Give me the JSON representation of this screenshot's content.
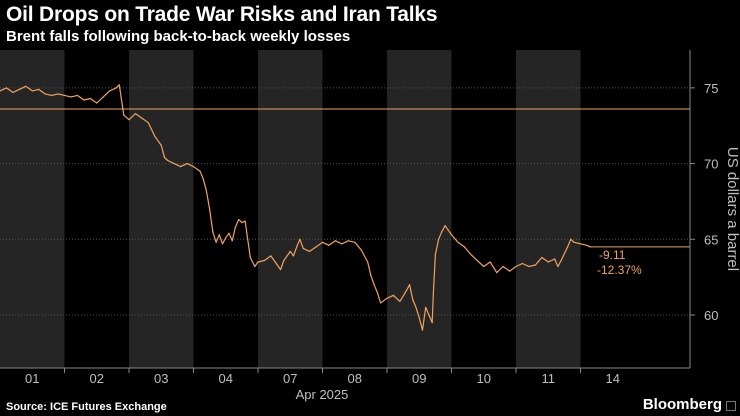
{
  "header": {
    "title": "Oil Drops on Trade War Risks and Iran Talks",
    "subtitle": "Brent falls following back-to-back weekly losses"
  },
  "footer": {
    "source": "Source: ICE Futures Exchange",
    "brand": "Bloomberg"
  },
  "colors": {
    "background": "#000000",
    "line": "#f0a35e",
    "reference_line": "#f0a35e",
    "shade": "#252525",
    "grid": "#555555",
    "text": "#ffffff",
    "axis_text": "#bfbfbf"
  },
  "chart_data": {
    "type": "line",
    "title": "Oil Drops on Trade War Risks and Iran Talks",
    "subtitle": "Brent falls following back-to-back weekly losses",
    "xlabel": "Apr 2025",
    "ylabel": "US dollars a barrel",
    "x_tick_labels": [
      "01",
      "02",
      "03",
      "04",
      "07",
      "08",
      "09",
      "10",
      "11",
      "14"
    ],
    "ylim": [
      56.5,
      77.5
    ],
    "y_ticks": [
      60,
      65,
      70,
      75
    ],
    "grid": "horizontal dotted",
    "shaded_days": [
      "01",
      "03",
      "07",
      "09",
      "11"
    ],
    "reference_value": 73.6,
    "last_value": 64.5,
    "change_label": "-9.11",
    "change_pct_label": "-12.37%",
    "series": [
      {
        "points": [
          {
            "x": 0.0,
            "y": 74.8
          },
          {
            "x": 0.1,
            "y": 75.0
          },
          {
            "x": 0.2,
            "y": 74.7
          },
          {
            "x": 0.3,
            "y": 74.9
          },
          {
            "x": 0.4,
            "y": 75.1
          },
          {
            "x": 0.5,
            "y": 74.8
          },
          {
            "x": 0.6,
            "y": 74.9
          },
          {
            "x": 0.7,
            "y": 74.6
          },
          {
            "x": 0.8,
            "y": 74.5
          },
          {
            "x": 0.9,
            "y": 74.6
          },
          {
            "x": 1.0,
            "y": 74.5
          },
          {
            "x": 1.1,
            "y": 74.4
          },
          {
            "x": 1.2,
            "y": 74.5
          },
          {
            "x": 1.3,
            "y": 74.2
          },
          {
            "x": 1.4,
            "y": 74.3
          },
          {
            "x": 1.5,
            "y": 74.0
          },
          {
            "x": 1.6,
            "y": 74.4
          },
          {
            "x": 1.7,
            "y": 74.8
          },
          {
            "x": 1.8,
            "y": 75.0
          },
          {
            "x": 1.85,
            "y": 75.2
          },
          {
            "x": 1.88,
            "y": 74.3
          },
          {
            "x": 1.92,
            "y": 73.2
          },
          {
            "x": 2.0,
            "y": 72.9
          },
          {
            "x": 2.1,
            "y": 73.3
          },
          {
            "x": 2.2,
            "y": 73.0
          },
          {
            "x": 2.3,
            "y": 72.7
          },
          {
            "x": 2.4,
            "y": 71.8
          },
          {
            "x": 2.5,
            "y": 71.2
          },
          {
            "x": 2.55,
            "y": 70.4
          },
          {
            "x": 2.6,
            "y": 70.2
          },
          {
            "x": 2.7,
            "y": 70.0
          },
          {
            "x": 2.8,
            "y": 69.8
          },
          {
            "x": 2.9,
            "y": 70.0
          },
          {
            "x": 3.0,
            "y": 69.8
          },
          {
            "x": 3.1,
            "y": 69.5
          },
          {
            "x": 3.15,
            "y": 69.0
          },
          {
            "x": 3.2,
            "y": 68.2
          },
          {
            "x": 3.25,
            "y": 67.0
          },
          {
            "x": 3.3,
            "y": 65.5
          },
          {
            "x": 3.35,
            "y": 64.8
          },
          {
            "x": 3.4,
            "y": 65.3
          },
          {
            "x": 3.45,
            "y": 64.7
          },
          {
            "x": 3.5,
            "y": 65.1
          },
          {
            "x": 3.55,
            "y": 65.4
          },
          {
            "x": 3.6,
            "y": 64.9
          },
          {
            "x": 3.65,
            "y": 65.8
          },
          {
            "x": 3.7,
            "y": 66.3
          },
          {
            "x": 3.75,
            "y": 66.1
          },
          {
            "x": 3.8,
            "y": 66.2
          },
          {
            "x": 3.88,
            "y": 63.8
          },
          {
            "x": 3.95,
            "y": 63.2
          },
          {
            "x": 4.0,
            "y": 63.5
          },
          {
            "x": 4.1,
            "y": 63.6
          },
          {
            "x": 4.2,
            "y": 63.9
          },
          {
            "x": 4.3,
            "y": 63.3
          },
          {
            "x": 4.35,
            "y": 63.0
          },
          {
            "x": 4.4,
            "y": 63.6
          },
          {
            "x": 4.5,
            "y": 64.2
          },
          {
            "x": 4.55,
            "y": 63.9
          },
          {
            "x": 4.6,
            "y": 64.5
          },
          {
            "x": 4.65,
            "y": 65.0
          },
          {
            "x": 4.7,
            "y": 64.4
          },
          {
            "x": 4.8,
            "y": 64.2
          },
          {
            "x": 4.9,
            "y": 64.5
          },
          {
            "x": 5.0,
            "y": 64.8
          },
          {
            "x": 5.1,
            "y": 64.6
          },
          {
            "x": 5.2,
            "y": 64.9
          },
          {
            "x": 5.3,
            "y": 64.7
          },
          {
            "x": 5.4,
            "y": 64.9
          },
          {
            "x": 5.5,
            "y": 64.8
          },
          {
            "x": 5.6,
            "y": 64.3
          },
          {
            "x": 5.7,
            "y": 63.5
          },
          {
            "x": 5.75,
            "y": 62.6
          },
          {
            "x": 5.8,
            "y": 62.0
          },
          {
            "x": 5.85,
            "y": 61.5
          },
          {
            "x": 5.9,
            "y": 60.8
          },
          {
            "x": 6.0,
            "y": 61.1
          },
          {
            "x": 6.1,
            "y": 61.3
          },
          {
            "x": 6.2,
            "y": 60.9
          },
          {
            "x": 6.3,
            "y": 61.6
          },
          {
            "x": 6.35,
            "y": 62.0
          },
          {
            "x": 6.4,
            "y": 61.0
          },
          {
            "x": 6.45,
            "y": 60.5
          },
          {
            "x": 6.5,
            "y": 59.8
          },
          {
            "x": 6.55,
            "y": 59.0
          },
          {
            "x": 6.6,
            "y": 60.5
          },
          {
            "x": 6.65,
            "y": 60.0
          },
          {
            "x": 6.7,
            "y": 59.5
          },
          {
            "x": 6.72,
            "y": 61.5
          },
          {
            "x": 6.75,
            "y": 64.0
          },
          {
            "x": 6.8,
            "y": 65.0
          },
          {
            "x": 6.85,
            "y": 65.5
          },
          {
            "x": 6.9,
            "y": 65.9
          },
          {
            "x": 6.95,
            "y": 65.6
          },
          {
            "x": 7.0,
            "y": 65.3
          },
          {
            "x": 7.1,
            "y": 64.8
          },
          {
            "x": 7.2,
            "y": 64.5
          },
          {
            "x": 7.3,
            "y": 64.0
          },
          {
            "x": 7.4,
            "y": 63.6
          },
          {
            "x": 7.5,
            "y": 63.2
          },
          {
            "x": 7.6,
            "y": 63.5
          },
          {
            "x": 7.7,
            "y": 62.8
          },
          {
            "x": 7.8,
            "y": 63.2
          },
          {
            "x": 7.9,
            "y": 62.9
          },
          {
            "x": 8.0,
            "y": 63.2
          },
          {
            "x": 8.1,
            "y": 63.4
          },
          {
            "x": 8.2,
            "y": 63.2
          },
          {
            "x": 8.3,
            "y": 63.3
          },
          {
            "x": 8.4,
            "y": 63.8
          },
          {
            "x": 8.5,
            "y": 63.5
          },
          {
            "x": 8.6,
            "y": 63.7
          },
          {
            "x": 8.65,
            "y": 63.2
          },
          {
            "x": 8.7,
            "y": 63.6
          },
          {
            "x": 8.8,
            "y": 64.5
          },
          {
            "x": 8.85,
            "y": 65.0
          },
          {
            "x": 8.9,
            "y": 64.8
          },
          {
            "x": 9.0,
            "y": 64.7
          },
          {
            "x": 9.1,
            "y": 64.6
          },
          {
            "x": 9.15,
            "y": 64.5
          }
        ]
      }
    ]
  }
}
